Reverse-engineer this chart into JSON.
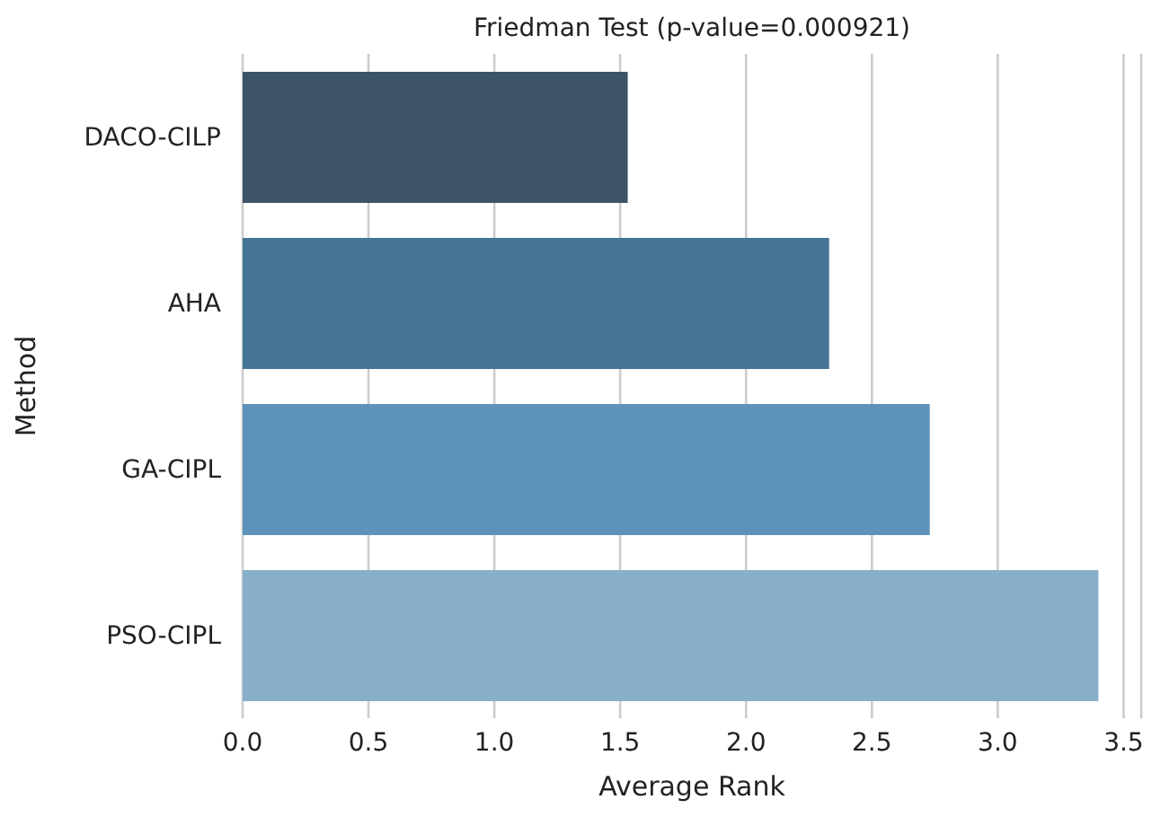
{
  "chart_data": {
    "type": "bar",
    "orientation": "horizontal",
    "title": "Friedman Test (p-value=0.000921)",
    "xlabel": "Average Rank",
    "ylabel": "Method",
    "categories": [
      "DACO-CILP",
      "AHA",
      "GA-CIPL",
      "PSO-CIPL"
    ],
    "values": [
      1.53,
      2.33,
      2.73,
      3.4
    ],
    "colors": [
      "#3d5468",
      "#447595",
      "#5d93ba",
      "#88afca"
    ],
    "xlim": [
      0,
      3.57
    ],
    "xticks": [
      {
        "value": 0,
        "label": "0.0"
      },
      0.5,
      {
        "value": 1,
        "label": "1.0"
      },
      1.5,
      {
        "value": 2,
        "label": "2.0"
      },
      2.5,
      {
        "value": 3,
        "label": "3.0"
      },
      3.5
    ],
    "grid": "x"
  }
}
